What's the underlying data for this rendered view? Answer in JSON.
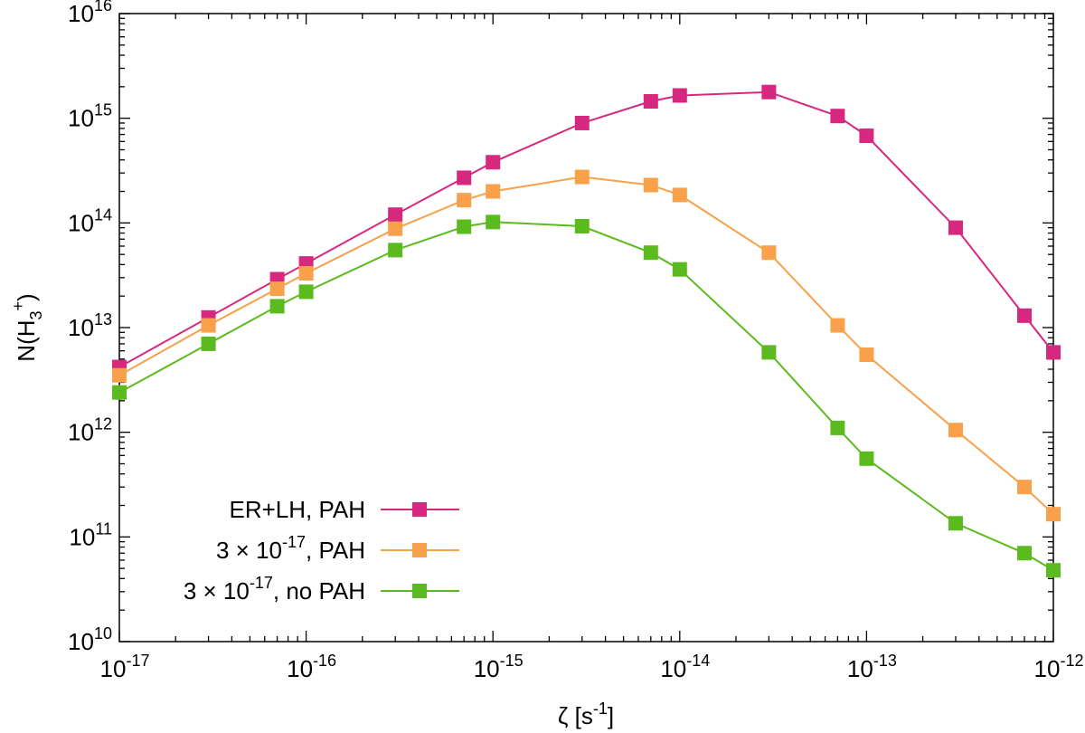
{
  "chart_data": {
    "type": "line",
    "title": "",
    "xscale": "log",
    "yscale": "log",
    "xlim": [
      1e-17,
      1e-12
    ],
    "ylim": [
      10000000000.0,
      1e+16
    ],
    "x_ticks": [
      {
        "base": "10",
        "exp": "-17",
        "value": 1e-17
      },
      {
        "base": "10",
        "exp": "-16",
        "value": 1e-16
      },
      {
        "base": "10",
        "exp": "-15",
        "value": 1e-15
      },
      {
        "base": "10",
        "exp": "-14",
        "value": 1e-14
      },
      {
        "base": "10",
        "exp": "-13",
        "value": 1e-13
      },
      {
        "base": "10",
        "exp": "-12",
        "value": 1e-12
      }
    ],
    "y_ticks": [
      {
        "base": "10",
        "exp": "10",
        "value": 10000000000.0
      },
      {
        "base": "10",
        "exp": "11",
        "value": 100000000000.0
      },
      {
        "base": "10",
        "exp": "12",
        "value": 1000000000000.0
      },
      {
        "base": "10",
        "exp": "13",
        "value": 10000000000000.0
      },
      {
        "base": "10",
        "exp": "14",
        "value": 100000000000000.0
      },
      {
        "base": "10",
        "exp": "15",
        "value": 1000000000000000.0
      },
      {
        "base": "10",
        "exp": "16",
        "value": 1e+16
      }
    ],
    "xlabel": {
      "main": "ζ  [s",
      "sup": "-1",
      "close": "]"
    },
    "ylabel": {
      "prefix": "N(H",
      "sub": "3",
      "sup": "+",
      "suffix": ")"
    },
    "legend_position": "bottom-left",
    "series": [
      {
        "name": "ER+LH, PAH",
        "legend": {
          "pre": "ER+LH, PAH",
          "sup": "",
          "post": ""
        },
        "color": "#d6287f",
        "x": [
          1e-17,
          3e-17,
          7e-17,
          1e-16,
          3e-16,
          7e-16,
          1e-15,
          3e-15,
          7e-15,
          1e-14,
          3e-14,
          7e-14,
          1e-13,
          3e-13,
          7e-13,
          1e-12
        ],
        "y": [
          4200000000000.0,
          12500000000000.0,
          29000000000000.0,
          41000000000000.0,
          120000000000000.0,
          270000000000000.0,
          380000000000000.0,
          900000000000000.0,
          1450000000000000.0,
          1650000000000000.0,
          1780000000000000.0,
          1050000000000000.0,
          680000000000000.0,
          90000000000000.0,
          13000000000000.0,
          5800000000000.0
        ]
      },
      {
        "name": "3 × 10^-17, PAH",
        "legend": {
          "pre": "3 × 10",
          "sup": "-17",
          "post": ", PAH"
        },
        "color": "#f9a04a",
        "x": [
          1e-17,
          3e-17,
          7e-17,
          1e-16,
          3e-16,
          7e-16,
          1e-15,
          3e-15,
          7e-15,
          1e-14,
          3e-14,
          7e-14,
          1e-13,
          3e-13,
          7e-13,
          1e-12
        ],
        "y": [
          3500000000000.0,
          10500000000000.0,
          23500000000000.0,
          33000000000000.0,
          88000000000000.0,
          165000000000000.0,
          200000000000000.0,
          275000000000000.0,
          230000000000000.0,
          185000000000000.0,
          52000000000000.0,
          10500000000000.0,
          5500000000000.0,
          1050000000000.0,
          300000000000.0,
          165000000000.0
        ]
      },
      {
        "name": "3 × 10^-17, no PAH",
        "legend": {
          "pre": "3 × 10",
          "sup": "-17",
          "post": ", no PAH"
        },
        "color": "#5bba1e",
        "x": [
          1e-17,
          3e-17,
          7e-17,
          1e-16,
          3e-16,
          7e-16,
          1e-15,
          3e-15,
          7e-15,
          1e-14,
          3e-14,
          7e-14,
          1e-13,
          3e-13,
          7e-13,
          1e-12
        ],
        "y": [
          2400000000000.0,
          7000000000000.0,
          16000000000000.0,
          22000000000000.0,
          55000000000000.0,
          92000000000000.0,
          102000000000000.0,
          93000000000000.0,
          52000000000000.0,
          36000000000000.0,
          5800000000000.0,
          1100000000000.0,
          560000000000.0,
          135000000000.0,
          70000000000.0,
          48000000000.0
        ]
      }
    ]
  }
}
